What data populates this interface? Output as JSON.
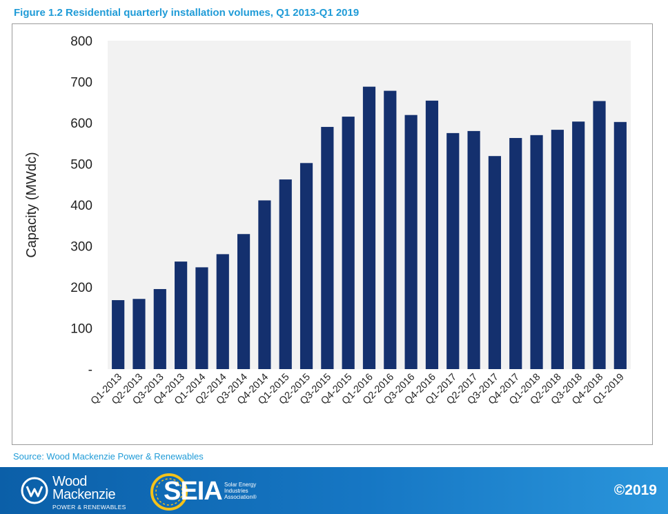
{
  "figure": {
    "title": "Figure 1.2 Residential quarterly installation volumes, Q1 2013-Q1 2019",
    "source": "Source: Wood Mackenzie Power & Renewables"
  },
  "chart_data": {
    "type": "bar",
    "title": "",
    "xlabel": "",
    "ylabel": "Capacity (MWdc)",
    "ylim": [
      0,
      800
    ],
    "yticks": [
      0,
      100,
      200,
      300,
      400,
      500,
      600,
      700,
      800
    ],
    "ytick_labels": [
      "-",
      "100",
      "200",
      "300",
      "400",
      "500",
      "600",
      "700",
      "800"
    ],
    "categories": [
      "Q1-2013",
      "Q2-2013",
      "Q3-2013",
      "Q4-2013",
      "Q1-2014",
      "Q2-2014",
      "Q3-2014",
      "Q4-2014",
      "Q1-2015",
      "Q2-2015",
      "Q3-2015",
      "Q4-2015",
      "Q1-2016",
      "Q2-2016",
      "Q3-2016",
      "Q4-2016",
      "Q1-2017",
      "Q2-2017",
      "Q3-2017",
      "Q4-2017",
      "Q1-2018",
      "Q2-2018",
      "Q3-2018",
      "Q4-2018",
      "Q1-2019"
    ],
    "values": [
      168,
      171,
      195,
      262,
      248,
      280,
      329,
      411,
      462,
      502,
      590,
      615,
      688,
      678,
      619,
      654,
      575,
      580,
      519,
      563,
      570,
      583,
      603,
      653,
      602
    ],
    "grid": false,
    "bar_color": "#14306e",
    "plot_background": "#f2f2f2"
  },
  "footer": {
    "wood_mackenzie": {
      "line1": "Wood",
      "line2": "Mackenzie",
      "subtitle": "POWER & RENEWABLES"
    },
    "seia": {
      "wordmark": "SEIA",
      "tagline": [
        "Solar Energy",
        "Industries",
        "Association®"
      ]
    },
    "copyright": "©2019"
  },
  "colors": {
    "title": "#1f9bd7",
    "footer_start": "#0b5fa8",
    "footer_end": "#2a95db",
    "seia_ring": "#f4c21a"
  }
}
